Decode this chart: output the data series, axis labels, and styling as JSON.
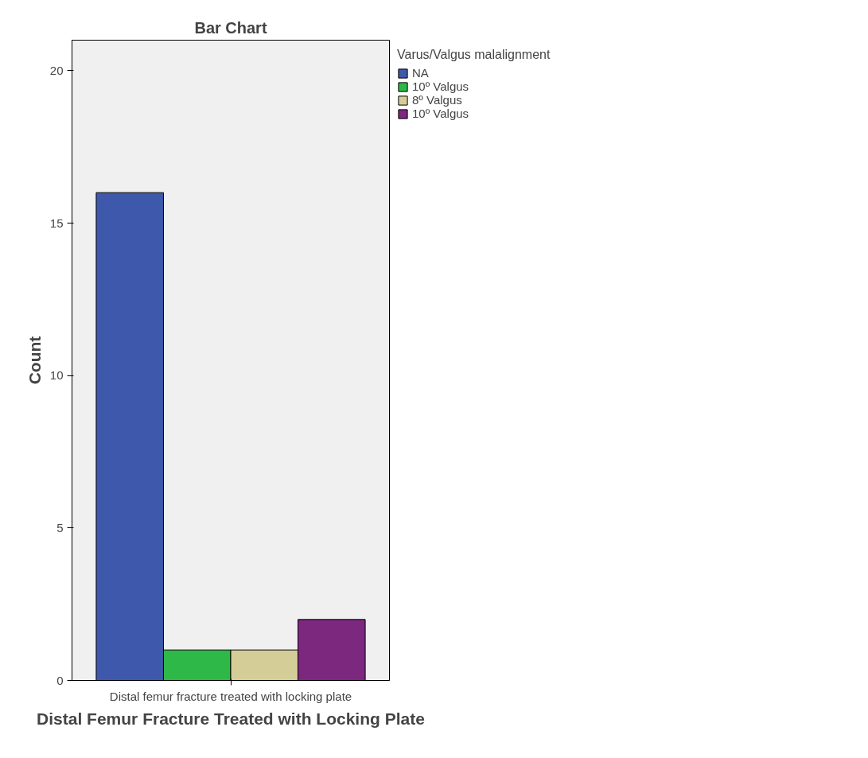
{
  "chart_data": {
    "type": "bar",
    "title": "Bar Chart",
    "xlabel": "Distal Femur Fracture Treated with Locking Plate",
    "ylabel": "Count",
    "legend_title": "Varus/Valgus malalignment",
    "categories": [
      "Distal femur fracture treated with locking plate"
    ],
    "series": [
      {
        "name": "NA",
        "color": "#3e58ac",
        "values": [
          16
        ]
      },
      {
        "name": "10º Valgus",
        "color": "#2eb848",
        "values": [
          1
        ]
      },
      {
        "name": "8º Valgus",
        "color": "#d4cd97",
        "values": [
          1
        ]
      },
      {
        "name": "10º Valgus",
        "color": "#7b287e",
        "values": [
          2
        ]
      }
    ],
    "ylim": [
      0,
      21
    ],
    "yticks": [
      0,
      5,
      10,
      15,
      20
    ],
    "grid": false,
    "legend": "right"
  }
}
